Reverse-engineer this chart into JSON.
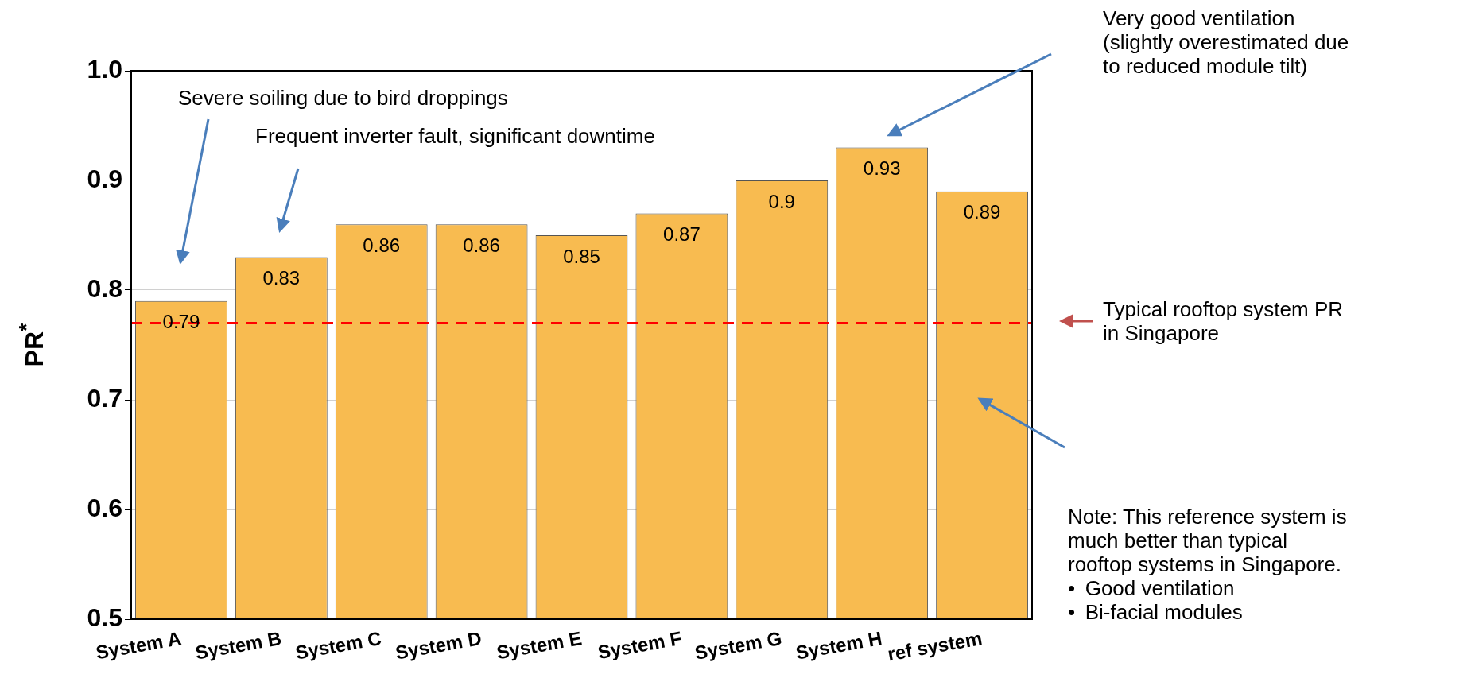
{
  "chart_data": {
    "type": "bar",
    "ylabel": "PR$^{*}$",
    "categories": [
      "System A",
      "System B",
      "System C",
      "System D",
      "System E",
      "System F",
      "System G",
      "System H",
      "ref system"
    ],
    "values": [
      0.79,
      0.83,
      0.86,
      0.86,
      0.85,
      0.87,
      0.9,
      0.93,
      0.89
    ],
    "color": "#f8bb50",
    "data_labels": true,
    "ylim": [
      0.5,
      1.0
    ],
    "yticks": [
      {
        "value": 0.5,
        "label": "0.5"
      },
      {
        "value": 0.6,
        "label": "0.6"
      },
      {
        "value": 0.7,
        "label": "0.7"
      },
      {
        "value": 0.8,
        "label": "0.8"
      },
      {
        "value": 0.9,
        "label": "0.9"
      },
      {
        "value": 1.0,
        "label": "1.0"
      }
    ],
    "grid": "y",
    "legend": false,
    "ref_lines": [
      {
        "axis": "y",
        "value": 0.77,
        "color": "#ff0000",
        "line_style": "dashed"
      }
    ],
    "annotations": [
      "Severe soiling due to bird droppings",
      "Frequent inverter fault, significant downtime",
      "Very good ventilation\n(slightly overestimated due\nto reduced module tilt)",
      "Note: This reference system is\nmuch better than typical\nrooftop systems in Singapore.\n•\tGood ventilation\n•\tBi-facial modules",
      "Typical rooftop system PR\nin Singapore"
    ]
  }
}
